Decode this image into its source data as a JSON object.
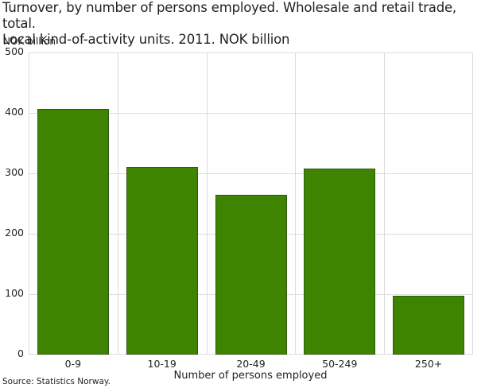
{
  "chart_data": {
    "type": "bar",
    "title": "Turnover, by number of persons employed. Wholesale and retail trade, total. Local kind-of-activity units. 2011. NOK billion",
    "title_lines": [
      "Turnover, by number of persons employed. Wholesale and retail trade, total.",
      "Local kind-of-activity units. 2011. NOK billion"
    ],
    "ylabel": "NOK billion",
    "xlabel": "Number of persons employed",
    "categories": [
      "0-9",
      "10-19",
      "20-49",
      "50-249",
      "250+"
    ],
    "values": [
      406,
      310,
      265,
      308,
      98
    ],
    "ylim": [
      0,
      500
    ],
    "yticks": [
      0,
      100,
      200,
      300,
      400,
      500
    ],
    "grid": true,
    "legend": null,
    "bar_color": "#3e8400",
    "source": "Source: Statistics Norway."
  }
}
